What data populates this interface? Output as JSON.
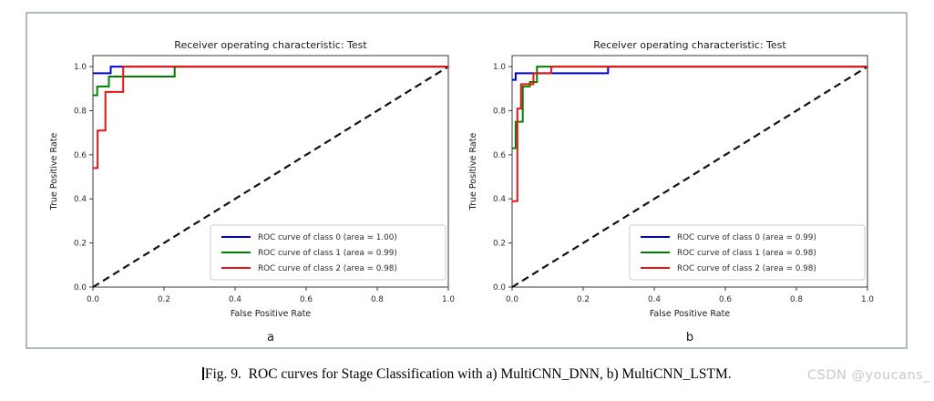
{
  "page": {
    "background": "#ffffff"
  },
  "figure_panel": {
    "border_color": "#b1babd",
    "background": "#ffffff"
  },
  "caption": {
    "text": "Fig. 9.  ROC curves for Stage Classification with a) MultiCNN_DNN, b) MultiCNN_LSTM."
  },
  "watermark": {
    "text": "CSDN @youcans_",
    "color": "#c9c9c9"
  },
  "style": {
    "axes_color": "#3a3a3a",
    "tick_text_color": "#2b2b2b",
    "title_color": "#1a1a1a",
    "legend_border_color": "#cccccc",
    "legend_background": "#ffffff"
  },
  "chart_data": [
    {
      "type": "line",
      "subplot_label": "a",
      "title": "Receiver operating characteristic: Test",
      "xlabel": "False Positive Rate",
      "ylabel": "True Positive Rate",
      "xlim": [
        0.0,
        1.0
      ],
      "ylim": [
        0.0,
        1.05
      ],
      "xtick_labels": [
        "0.0",
        "0.2",
        "0.4",
        "0.6",
        "0.8",
        "1.0"
      ],
      "ytick_labels": [
        "0.0",
        "0.2",
        "0.4",
        "0.6",
        "0.8",
        "1.0"
      ],
      "grid": false,
      "legend_position": "lower right",
      "reference_line": {
        "style": "dashed",
        "color": "#111111",
        "points": [
          [
            0,
            0
          ],
          [
            1,
            1
          ]
        ]
      },
      "series": [
        {
          "name": "ROC curve of class 0 (area = 1.00)",
          "color": "#0000dd",
          "points": [
            [
              0,
              0.97
            ],
            [
              0.05,
              0.97
            ],
            [
              0.05,
              1.0
            ],
            [
              1.0,
              1.0
            ]
          ]
        },
        {
          "name": "ROC curve of class 1 (area = 0.99)",
          "color": "#008000",
          "points": [
            [
              0,
              0.87
            ],
            [
              0.012,
              0.87
            ],
            [
              0.012,
              0.91
            ],
            [
              0.045,
              0.91
            ],
            [
              0.045,
              0.955
            ],
            [
              0.23,
              0.955
            ],
            [
              0.23,
              1.0
            ],
            [
              1.0,
              1.0
            ]
          ]
        },
        {
          "name": "ROC curve of class 2 (area = 0.98)",
          "color": "#e81414",
          "points": [
            [
              0,
              0.54
            ],
            [
              0.013,
              0.54
            ],
            [
              0.013,
              0.71
            ],
            [
              0.035,
              0.71
            ],
            [
              0.035,
              0.885
            ],
            [
              0.085,
              0.885
            ],
            [
              0.085,
              1.0
            ],
            [
              1.0,
              1.0
            ]
          ]
        }
      ]
    },
    {
      "type": "line",
      "subplot_label": "b",
      "title": "Receiver operating characteristic: Test",
      "xlabel": "False Positive Rate",
      "ylabel": "True Positive Rate",
      "xlim": [
        0.0,
        1.0
      ],
      "ylim": [
        0.0,
        1.05
      ],
      "xtick_labels": [
        "0.0",
        "0.2",
        "0.4",
        "0.6",
        "0.8",
        "1.0"
      ],
      "ytick_labels": [
        "0.0",
        "0.2",
        "0.4",
        "0.6",
        "0.8",
        "1.0"
      ],
      "grid": false,
      "legend_position": "lower right",
      "reference_line": {
        "style": "dashed",
        "color": "#111111",
        "points": [
          [
            0,
            0
          ],
          [
            1,
            1
          ]
        ]
      },
      "series": [
        {
          "name": "ROC curve of class 0 (area = 0.99)",
          "color": "#0000dd",
          "points": [
            [
              0,
              0.94
            ],
            [
              0.01,
              0.94
            ],
            [
              0.01,
              0.97
            ],
            [
              0.27,
              0.97
            ],
            [
              0.27,
              1.0
            ],
            [
              1.0,
              1.0
            ]
          ]
        },
        {
          "name": "ROC curve of class 1 (area = 0.98)",
          "color": "#008000",
          "points": [
            [
              0,
              0.63
            ],
            [
              0.01,
              0.63
            ],
            [
              0.01,
              0.75
            ],
            [
              0.03,
              0.75
            ],
            [
              0.03,
              0.91
            ],
            [
              0.05,
              0.91
            ],
            [
              0.05,
              0.93
            ],
            [
              0.07,
              0.93
            ],
            [
              0.07,
              1.0
            ],
            [
              1.0,
              1.0
            ]
          ]
        },
        {
          "name": "ROC curve of class 2 (area = 0.98)",
          "color": "#e81414",
          "points": [
            [
              0,
              0.39
            ],
            [
              0.015,
              0.39
            ],
            [
              0.015,
              0.81
            ],
            [
              0.025,
              0.81
            ],
            [
              0.025,
              0.92
            ],
            [
              0.06,
              0.92
            ],
            [
              0.06,
              0.97
            ],
            [
              0.11,
              0.97
            ],
            [
              0.11,
              1.0
            ],
            [
              1.0,
              1.0
            ]
          ]
        }
      ]
    }
  ]
}
